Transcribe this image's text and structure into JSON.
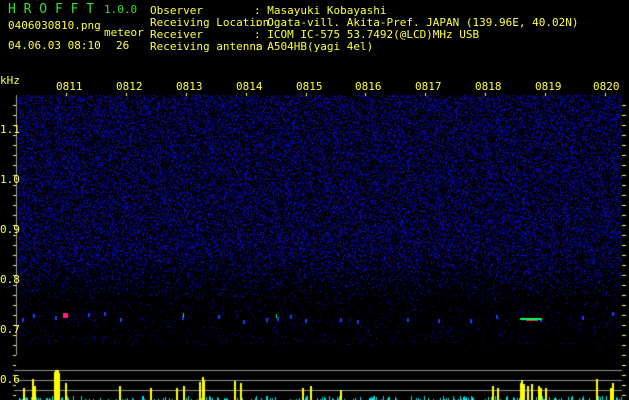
{
  "app": {
    "name": "H R O F F T",
    "version": "1.0.0"
  },
  "file": {
    "name": "0406030810.png",
    "datetime": "04.06.03 08:10"
  },
  "meteor": {
    "label": "meteor",
    "count": "26"
  },
  "info": [
    {
      "label": "Observer",
      "value": ": Masayuki Kobayashi"
    },
    {
      "label": "Receiving Location",
      "value": ": Ogata-vill. Akita-Pref. JAPAN (139.96E, 40.02N)"
    },
    {
      "label": "Receiver",
      "value": ": ICOM IC-575 53.7492(@LCD)MHz USB"
    },
    {
      "label": "Receiving antenna",
      "value": ": A504HB(yagi 4el)"
    }
  ],
  "axis": {
    "unit": "kHz",
    "y_labels": [
      "1.1",
      "1.0",
      "0.9",
      "0.8",
      "0.7",
      "0.6"
    ],
    "x_labels": [
      "0811",
      "0812",
      "0813",
      "0814",
      "0815",
      "0816",
      "0817",
      "0818",
      "0819",
      "0820"
    ]
  },
  "colors": {
    "text": "#ffff40",
    "title": "#30e030",
    "noise": "#2020c0",
    "histogram": "#ffff00",
    "histogram_low": "#00e0e0"
  }
}
